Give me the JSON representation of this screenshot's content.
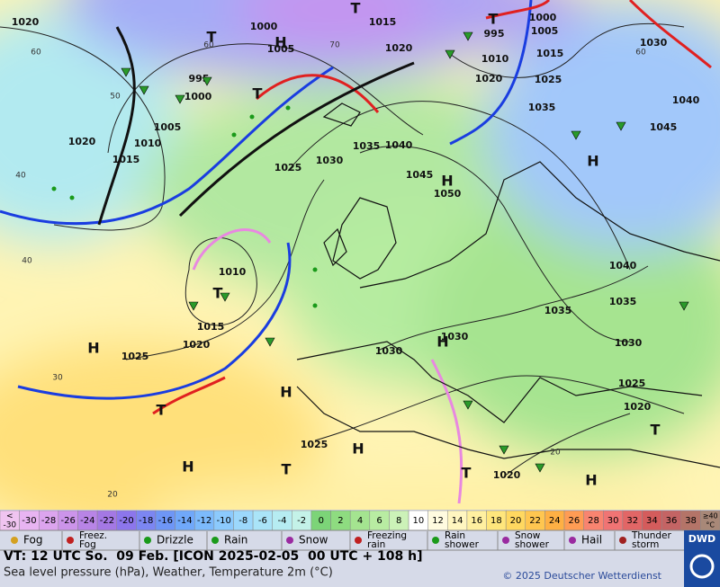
{
  "map": {
    "pressure_labels": [
      "1020",
      "1000",
      "1005",
      "1015",
      "1020",
      "1000",
      "1005",
      "995",
      "1010",
      "1015",
      "1020",
      "1025",
      "1030",
      "1040",
      "1035",
      "1045",
      "995",
      "1000",
      "1005",
      "1010",
      "1015",
      "1020",
      "1025",
      "1030",
      "1035",
      "1040",
      "1045",
      "1050",
      "1010",
      "1015",
      "1020",
      "1025",
      "1030",
      "1030",
      "1040",
      "1035",
      "1035",
      "1030",
      "1025",
      "1020",
      "1025",
      "1020"
    ],
    "centers": [
      "T",
      "T",
      "H",
      "T",
      "T",
      "H",
      "H",
      "T",
      "H",
      "H",
      "H",
      "T",
      "H",
      "H",
      "T",
      "T",
      "H",
      "T"
    ],
    "temp_labels": [
      "60",
      "50",
      "40",
      "40",
      "30",
      "20",
      "60",
      "20",
      "70",
      "60"
    ]
  },
  "legend": {
    "scale": {
      "low_top": "<",
      "low_bottom": "-30",
      "high_top": "≥40",
      "high_bottom": "°C",
      "low_color": "#f0c4f0",
      "high_color": "#a88878",
      "steps": [
        {
          "value": -30,
          "color": "#e8b4f2"
        },
        {
          "value": -28,
          "color": "#dca4ee"
        },
        {
          "value": -26,
          "color": "#cc94ea"
        },
        {
          "value": -24,
          "color": "#b884e6"
        },
        {
          "value": -22,
          "color": "#a478e4"
        },
        {
          "value": -20,
          "color": "#8c76ec"
        },
        {
          "value": -18,
          "color": "#7c86f2"
        },
        {
          "value": -16,
          "color": "#6e96f6"
        },
        {
          "value": -14,
          "color": "#70a8fa"
        },
        {
          "value": -12,
          "color": "#7cbafc"
        },
        {
          "value": -10,
          "color": "#8ccafd"
        },
        {
          "value": -8,
          "color": "#9cd8fc"
        },
        {
          "value": -6,
          "color": "#aae4f8"
        },
        {
          "value": -4,
          "color": "#b6ecf2"
        },
        {
          "value": -2,
          "color": "#c4f2e8"
        },
        {
          "value": 0,
          "color": "#7cd478"
        },
        {
          "value": 2,
          "color": "#8edc80"
        },
        {
          "value": 4,
          "color": "#a4e490"
        },
        {
          "value": 6,
          "color": "#b8eca2"
        },
        {
          "value": 8,
          "color": "#ccf2b8"
        },
        {
          "value": 10,
          "color": "#ffffff"
        },
        {
          "value": 12,
          "color": "#fffbe0"
        },
        {
          "value": 14,
          "color": "#fff6c0"
        },
        {
          "value": 16,
          "color": "#fff0a0"
        },
        {
          "value": 18,
          "color": "#ffe67c"
        },
        {
          "value": 20,
          "color": "#ffd860"
        },
        {
          "value": 22,
          "color": "#ffc650"
        },
        {
          "value": 24,
          "color": "#ffb044"
        },
        {
          "value": 26,
          "color": "#ff9c54"
        },
        {
          "value": 28,
          "color": "#f88470"
        },
        {
          "value": 30,
          "color": "#f07474"
        },
        {
          "value": 32,
          "color": "#e26666"
        },
        {
          "value": 34,
          "color": "#d45c5c"
        },
        {
          "value": 36,
          "color": "#c46464"
        },
        {
          "value": 38,
          "color": "#b47468"
        }
      ]
    },
    "weather": [
      {
        "lines": [
          "Fog"
        ]
      },
      {
        "lines": [
          "Freez.",
          "Fog"
        ]
      },
      {
        "lines": [
          "Drizzle"
        ]
      },
      {
        "lines": [
          "Rain"
        ]
      },
      {
        "lines": [
          "Snow"
        ]
      },
      {
        "lines": [
          "Freezing",
          "rain"
        ]
      },
      {
        "lines": [
          "Rain",
          "shower"
        ]
      },
      {
        "lines": [
          "Snow",
          "shower"
        ]
      },
      {
        "lines": [
          "Hail"
        ]
      },
      {
        "lines": [
          "Thunder",
          "storm"
        ]
      }
    ]
  },
  "footer": {
    "valid_time": "VT: 12 UTC So.  09 Feb. [ICON 2025-02-05  00 UTC + 108 h]",
    "description": "Sea level pressure (hPa), Weather, Temperature 2m (°C)",
    "copyright": "© 2025 Deutscher Wetterdienst",
    "logo": "DWD"
  }
}
